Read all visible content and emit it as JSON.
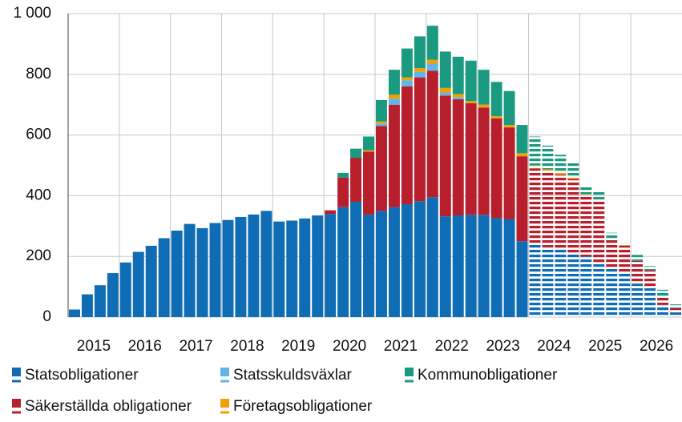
{
  "chart_data": {
    "type": "stacked-bar",
    "xticks": [
      "2015",
      "2016",
      "2017",
      "2018",
      "2019",
      "2020",
      "2021",
      "2022",
      "2023",
      "2024",
      "2025",
      "2026"
    ],
    "hatched_from": "2024",
    "ylim": [
      0,
      1000
    ],
    "yticks": [
      0,
      200,
      400,
      600,
      800,
      {
        "value": 1000,
        "label": "1 000"
      }
    ],
    "grid": true,
    "legend": "bottom",
    "series": [
      {
        "name": "Statsobligationer",
        "color": "#0f6db5",
        "values": [
          25,
          75,
          105,
          145,
          180,
          215,
          235,
          260,
          285,
          307,
          293,
          310,
          320,
          330,
          338,
          350,
          315,
          318,
          325,
          335,
          340,
          362,
          380,
          338,
          350,
          362,
          372,
          382,
          395,
          332,
          335,
          337,
          337,
          326,
          322,
          250,
          240,
          230,
          225,
          210,
          200,
          180,
          160,
          150,
          110,
          95,
          40,
          15
        ]
      },
      {
        "name": "Säkerställda obligationer",
        "color": "#b81f2c",
        "values": [
          0,
          0,
          0,
          0,
          0,
          0,
          0,
          0,
          0,
          0,
          0,
          0,
          0,
          0,
          0,
          0,
          0,
          0,
          0,
          0,
          12,
          98,
          145,
          207,
          280,
          338,
          388,
          408,
          417,
          398,
          383,
          368,
          353,
          329,
          303,
          280,
          250,
          250,
          245,
          245,
          200,
          205,
          95,
          85,
          75,
          60,
          30,
          15
        ]
      },
      {
        "name": "Statsskuldsväxlar",
        "color": "#62b5ea",
        "values": [
          0,
          0,
          0,
          0,
          0,
          0,
          0,
          0,
          0,
          0,
          0,
          0,
          0,
          0,
          0,
          0,
          0,
          0,
          0,
          0,
          0,
          0,
          0,
          0,
          8,
          20,
          20,
          18,
          23,
          10,
          7,
          0,
          0,
          0,
          0,
          0,
          0,
          0,
          0,
          0,
          0,
          0,
          0,
          0,
          0,
          0,
          0,
          0
        ]
      },
      {
        "name": "Företagsobligationer",
        "color": "#f0a000",
        "values": [
          0,
          0,
          0,
          0,
          0,
          0,
          0,
          0,
          0,
          0,
          0,
          0,
          0,
          0,
          0,
          0,
          0,
          0,
          0,
          0,
          0,
          0,
          0,
          5,
          7,
          13,
          10,
          12,
          13,
          15,
          10,
          7,
          10,
          7,
          8,
          10,
          10,
          7,
          5,
          5,
          5,
          3,
          3,
          2,
          0,
          0,
          0,
          0
        ]
      },
      {
        "name": "Kommunobligationer",
        "color": "#1a9a80",
        "values": [
          0,
          0,
          0,
          0,
          0,
          0,
          0,
          0,
          0,
          0,
          0,
          0,
          0,
          0,
          0,
          0,
          0,
          0,
          0,
          0,
          0,
          15,
          30,
          45,
          70,
          82,
          95,
          105,
          112,
          120,
          123,
          133,
          115,
          113,
          112,
          93,
          95,
          78,
          60,
          50,
          25,
          24,
          20,
          8,
          20,
          13,
          20,
          12
        ]
      }
    ]
  }
}
